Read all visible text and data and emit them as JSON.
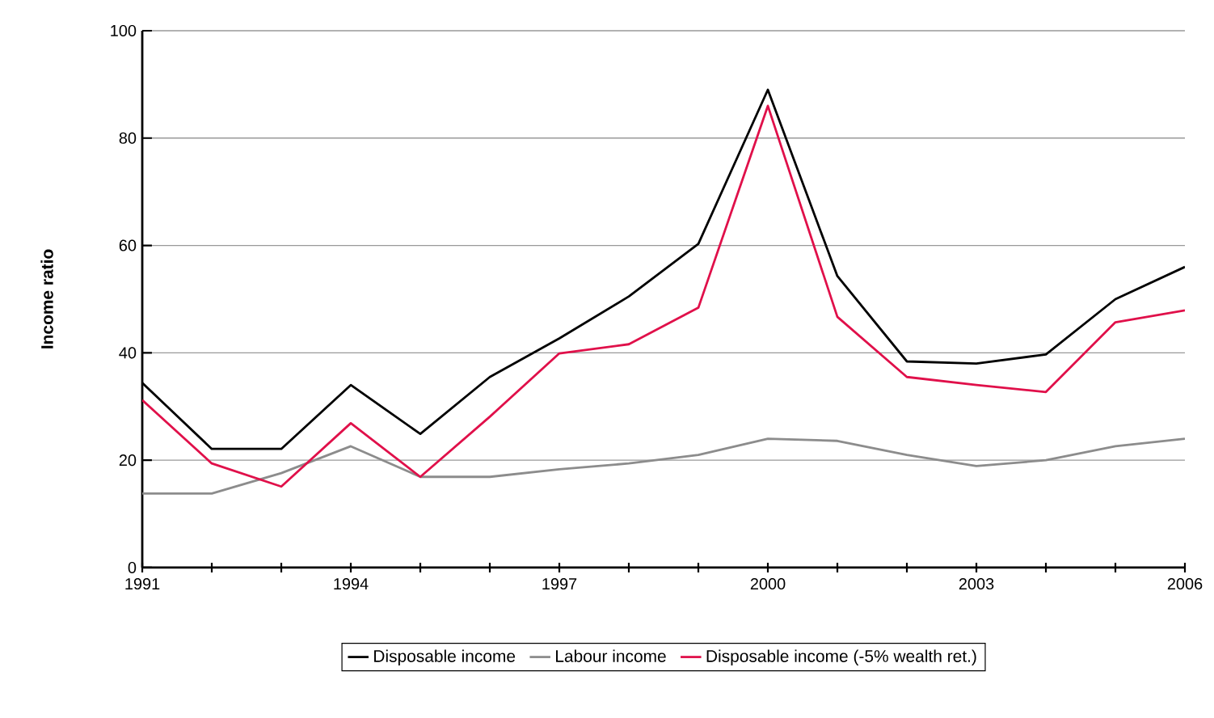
{
  "chart_data": {
    "type": "line",
    "ylabel": "Income ratio",
    "x": [
      1991,
      1992,
      1993,
      1994,
      1995,
      1996,
      1997,
      1998,
      1999,
      2000,
      2001,
      2002,
      2003,
      2004,
      2005,
      2006
    ],
    "xlim": [
      1991,
      2006
    ],
    "xticks": [
      1991,
      {
        "value": 1992,
        "label": null
      },
      {
        "value": 1993,
        "label": null
      },
      1994,
      {
        "value": 1995,
        "label": null
      },
      {
        "value": 1996,
        "label": null
      },
      1997,
      {
        "value": 1998,
        "label": null
      },
      {
        "value": 1999,
        "label": null
      },
      2000,
      {
        "value": 2001,
        "label": null
      },
      {
        "value": 2002,
        "label": null
      },
      2003,
      {
        "value": 2004,
        "label": null
      },
      {
        "value": 2005,
        "label": null
      },
      2006
    ],
    "ylim": [
      0,
      100
    ],
    "yticks": [
      0,
      20,
      40,
      60,
      80,
      100
    ],
    "grid": "y",
    "legend": "bottom",
    "marker": "none",
    "line_style": "solid",
    "series": [
      {
        "name": "Disposable income",
        "color": "#000000",
        "values": [
          34.4,
          22.1,
          22.1,
          34,
          24.9,
          35.5,
          42.7,
          50.5,
          60.3,
          89,
          54.3,
          38.4,
          38,
          39.7,
          50,
          56
        ]
      },
      {
        "name": "Labour income",
        "color": "#8c8c8c",
        "values": [
          13.8,
          13.8,
          17.6,
          22.6,
          16.9,
          16.9,
          18.3,
          19.4,
          21,
          24,
          23.6,
          21,
          18.9,
          20,
          22.6,
          24
        ]
      },
      {
        "name": "Disposable income (-5% wealth ret.)",
        "color": "#e0104a",
        "values": [
          31.2,
          19.4,
          15.1,
          26.9,
          16.9,
          28.1,
          39.9,
          41.6,
          48.4,
          86,
          46.7,
          35.5,
          34,
          32.7,
          45.7,
          47.9
        ]
      }
    ]
  }
}
